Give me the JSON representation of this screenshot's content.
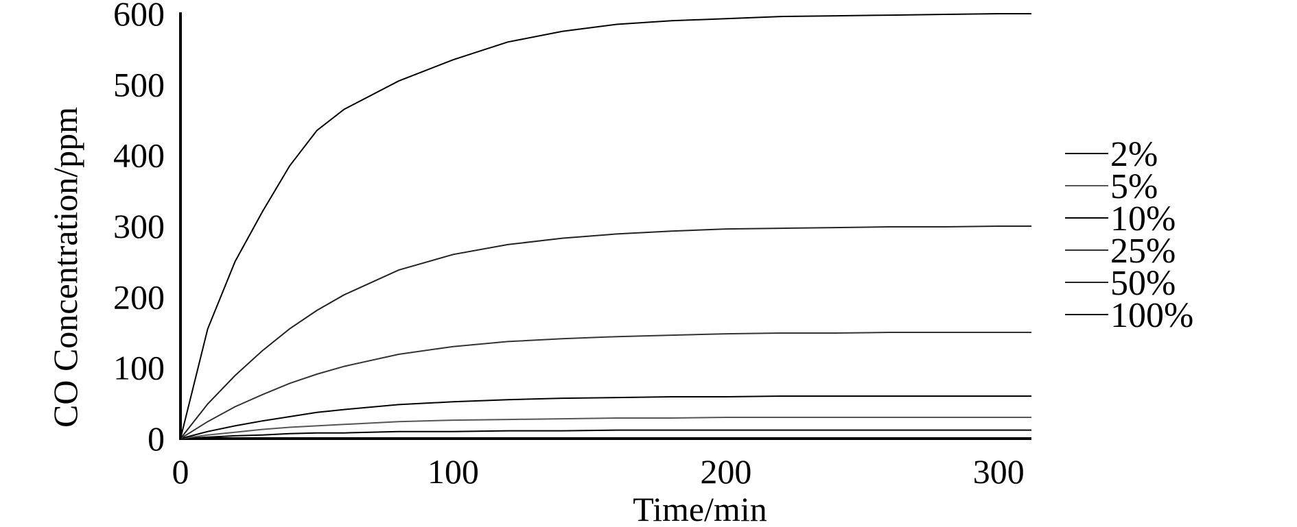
{
  "chart_data": {
    "type": "line",
    "title": "",
    "xlabel": "Time/min",
    "ylabel": "CO Concentration/ppm",
    "xlim": [
      0,
      312
    ],
    "ylim": [
      0,
      600
    ],
    "xticks": [
      "0",
      "100",
      "200",
      "300"
    ],
    "yticks": [
      "0",
      "100",
      "200",
      "300",
      "400",
      "500",
      "600"
    ],
    "grid": false,
    "legend_position": "right",
    "x": [
      0,
      10,
      20,
      30,
      40,
      50,
      60,
      80,
      100,
      120,
      140,
      160,
      180,
      200,
      220,
      240,
      260,
      280,
      300,
      312
    ],
    "series": [
      {
        "name": "2%",
        "color": "#000000",
        "values": [
          0,
          2,
          4,
          5,
          7,
          8,
          8,
          10,
          10,
          11,
          11,
          12,
          12,
          12,
          12,
          12,
          12,
          12,
          12,
          12
        ]
      },
      {
        "name": "5%",
        "color": "#555555",
        "values": [
          0,
          5,
          9,
          13,
          16,
          18,
          20,
          24,
          26,
          27,
          28,
          29,
          29,
          30,
          30,
          30,
          30,
          30,
          30,
          30
        ]
      },
      {
        "name": "10%",
        "color": "#000000",
        "values": [
          0,
          10,
          18,
          25,
          31,
          37,
          41,
          48,
          52,
          55,
          57,
          58,
          59,
          59,
          60,
          60,
          60,
          60,
          60,
          60
        ]
      },
      {
        "name": "25%",
        "color": "#333333",
        "values": [
          0,
          24,
          45,
          62,
          78,
          91,
          102,
          119,
          130,
          137,
          141,
          144,
          146,
          148,
          149,
          149,
          150,
          150,
          150,
          150
        ]
      },
      {
        "name": "50%",
        "color": "#222222",
        "values": [
          0,
          49,
          89,
          124,
          155,
          181,
          203,
          238,
          260,
          274,
          283,
          289,
          293,
          296,
          297,
          298,
          299,
          299,
          300,
          300
        ]
      },
      {
        "name": "100%",
        "color": "#000000",
        "values": [
          0,
          155,
          250,
          320,
          385,
          435,
          465,
          505,
          535,
          560,
          575,
          585,
          590,
          593,
          596,
          597,
          598,
          599,
          600,
          600
        ]
      }
    ]
  }
}
